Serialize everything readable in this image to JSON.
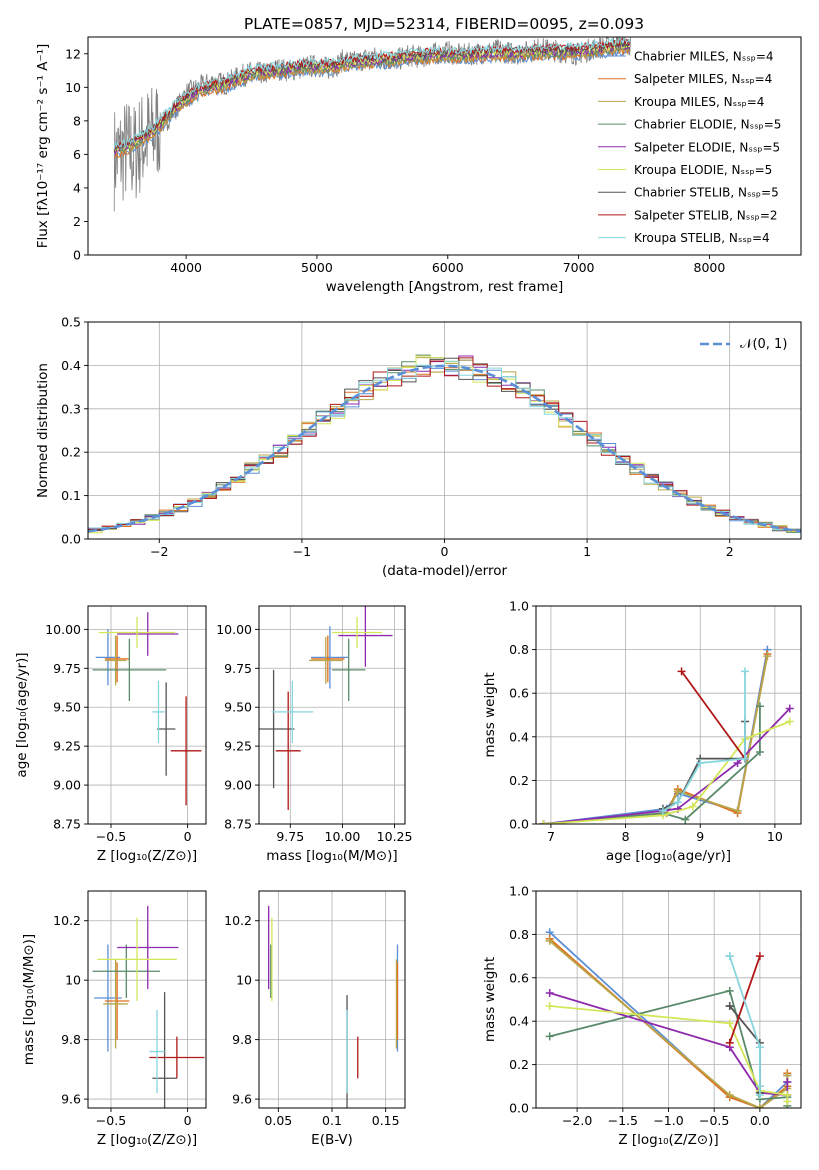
{
  "colors": {
    "Chabrier MILES": "#5b8fd6",
    "Salpeter MILES": "#e0701e",
    "Kroupa MILES": "#b8a64a",
    "Chabrier ELODIE": "#5a8a6a",
    "Salpeter ELODIE": "#8e2aad",
    "Kroupa ELODIE": "#d4e658",
    "Chabrier STELIB": "#555555",
    "Salpeter STELIB": "#b01717",
    "Kroupa STELIB": "#86d6de",
    "data": "#808080",
    "gauss": "#5b8fd6"
  },
  "chart_data": [
    {
      "id": "spectrum",
      "type": "line",
      "title": "PLATE=0857, MJD=52314, FIBERID=0095, z=0.093",
      "xlabel": "wavelength [Angstrom, rest frame]",
      "ylabel": "Flux [fλ10⁻¹⁷ erg cm⁻² s⁻¹ A⁻¹]",
      "xlim": [
        3250,
        8700
      ],
      "ylim": [
        0,
        13
      ],
      "xticks": [
        4000,
        5000,
        6000,
        7000,
        8000
      ],
      "yticks": [
        0,
        2,
        4,
        6,
        8,
        10,
        12
      ],
      "grid": false,
      "legend_position": "top-right",
      "legend": [
        {
          "label": "Chabrier MILES, Nₛₛₚ=4",
          "series": "Chabrier MILES"
        },
        {
          "label": "Salpeter MILES, Nₛₛₚ=4",
          "series": "Salpeter MILES"
        },
        {
          "label": "Kroupa MILES, Nₛₛₚ=4",
          "series": "Kroupa MILES"
        },
        {
          "label": "Chabrier ELODIE, Nₛₛₚ=5",
          "series": "Chabrier ELODIE"
        },
        {
          "label": "Salpeter ELODIE, Nₛₛₚ=5",
          "series": "Salpeter ELODIE"
        },
        {
          "label": "Kroupa ELODIE, Nₛₛₚ=5",
          "series": "Kroupa ELODIE"
        },
        {
          "label": "Chabrier STELIB, Nₛₛₚ=5",
          "series": "Chabrier STELIB"
        },
        {
          "label": "Salpeter STELIB, Nₛₛₚ=2",
          "series": "Salpeter STELIB"
        },
        {
          "label": "Kroupa STELIB, Nₛₛₚ=4",
          "series": "Kroupa STELIB"
        }
      ],
      "data_spectrum": {
        "x": [
          3450,
          3500,
          3550,
          3600,
          3650,
          3700,
          3750,
          3800,
          3850,
          3900,
          3950,
          4000,
          4100,
          4200,
          4300,
          4400,
          4500,
          4600,
          4700,
          4800,
          4900,
          5000,
          5100,
          5200,
          5300,
          5400,
          5500,
          5600,
          5700,
          5800,
          5900,
          6000,
          6100,
          6200,
          6300,
          6400,
          6500,
          6600,
          6700,
          6800,
          6900,
          7000,
          7100,
          7200,
          7300,
          7400
        ],
        "y": [
          5.8,
          6.0,
          6.3,
          6.0,
          6.6,
          7.0,
          7.2,
          7.8,
          8.0,
          8.6,
          9.0,
          9.6,
          10.0,
          10.3,
          10.2,
          10.6,
          10.9,
          10.8,
          11.1,
          11.0,
          11.2,
          11.3,
          11.1,
          11.6,
          11.5,
          11.8,
          11.7,
          11.6,
          11.9,
          11.8,
          12.0,
          12.1,
          11.9,
          12.0,
          12.1,
          12.2,
          12.0,
          12.1,
          12.3,
          12.2,
          12.1,
          12.0,
          12.3,
          12.4,
          12.6,
          12.5
        ]
      },
      "model_spectrum": {
        "x": [
          3450,
          3550,
          3650,
          3750,
          3850,
          3950,
          4100,
          4300,
          4500,
          4700,
          4900,
          5100,
          5300,
          5500,
          5700,
          5900,
          6100,
          6300,
          6500,
          6700,
          6900,
          7100,
          7300,
          7400
        ],
        "y": [
          6.2,
          6.4,
          6.9,
          7.4,
          8.2,
          9.0,
          9.8,
          10.2,
          10.8,
          11.0,
          11.2,
          11.2,
          11.5,
          11.6,
          11.8,
          11.9,
          11.9,
          12.0,
          12.0,
          12.1,
          12.1,
          12.2,
          12.4,
          12.5
        ]
      }
    },
    {
      "id": "residuals",
      "type": "line",
      "xlabel": "(data-model)/error",
      "ylabel": "Normed distribution",
      "xlim": [
        -2.5,
        2.5
      ],
      "ylim": [
        0,
        0.5
      ],
      "xticks": [
        -2,
        -1,
        0,
        1,
        2
      ],
      "yticks": [
        0.0,
        0.1,
        0.2,
        0.3,
        0.4,
        0.5
      ],
      "grid": true,
      "legend_position": "top-right",
      "legend": [
        {
          "label": "𝒩(0, 1)",
          "series": "gauss"
        }
      ],
      "gaussian": {
        "mean": 0,
        "sigma": 1,
        "style": "dashed"
      },
      "bin_width": 0.1,
      "series": [
        {
          "series": "Chabrier MILES"
        },
        {
          "series": "Salpeter MILES"
        },
        {
          "series": "Kroupa MILES"
        },
        {
          "series": "Chabrier ELODIE"
        },
        {
          "series": "Salpeter ELODIE"
        },
        {
          "series": "Kroupa ELODIE"
        },
        {
          "series": "Chabrier STELIB"
        },
        {
          "series": "Salpeter STELIB"
        },
        {
          "series": "Kroupa STELIB"
        }
      ]
    },
    {
      "id": "age-vs-Z",
      "type": "scatter",
      "xlabel": "Z [log₁₀(Z/Z⊙)]",
      "ylabel": "age  [log₁₀(age/yr)]",
      "xlim": [
        -0.65,
        0.12
      ],
      "ylim": [
        8.75,
        10.15
      ],
      "xticks": [
        -0.5,
        0.0
      ],
      "yticks": [
        8.75,
        9.0,
        9.25,
        9.5,
        9.75,
        10.0
      ],
      "ytick_labels": [
        "8.75",
        "9.00",
        "9.25",
        "9.50",
        "9.75",
        "10.00"
      ],
      "grid": true,
      "points": [
        {
          "series": "Chabrier MILES",
          "x": -0.52,
          "xerr": 0.08,
          "y": 9.82,
          "yerr": 0.18
        },
        {
          "series": "Salpeter MILES",
          "x": -0.46,
          "xerr": 0.08,
          "y": 9.81,
          "yerr": 0.15
        },
        {
          "series": "Kroupa MILES",
          "x": -0.47,
          "xerr": 0.07,
          "y": 9.8,
          "yerr": 0.16
        },
        {
          "series": "Chabrier ELODIE",
          "x": -0.38,
          "xerr": 0.24,
          "y": 9.74,
          "yerr": 0.2
        },
        {
          "series": "Salpeter ELODIE",
          "x": -0.26,
          "xerr": 0.2,
          "y": 9.97,
          "yerr": 0.14
        },
        {
          "series": "Kroupa ELODIE",
          "x": -0.33,
          "xerr": 0.25,
          "y": 9.98,
          "yerr": 0.1
        },
        {
          "series": "Chabrier STELIB",
          "x": -0.14,
          "xerr": 0.06,
          "y": 9.36,
          "yerr": 0.3
        },
        {
          "series": "Salpeter STELIB",
          "x": -0.01,
          "xerr": 0.1,
          "y": 9.22,
          "yerr": 0.35
        },
        {
          "series": "Kroupa STELIB",
          "x": -0.19,
          "xerr": 0.04,
          "y": 9.47,
          "yerr": 0.2
        }
      ]
    },
    {
      "id": "age-vs-mass",
      "type": "scatter",
      "xlabel": "mass [log₁₀(M/M⊙)]",
      "xlim": [
        9.6,
        10.3
      ],
      "ylim": [
        8.75,
        10.15
      ],
      "xticks": [
        9.75,
        10.0,
        10.25
      ],
      "xtick_labels": [
        "9.75",
        "10.00",
        "10.25"
      ],
      "yticks": [
        8.75,
        9.0,
        9.25,
        9.5,
        9.75,
        10.0
      ],
      "ytick_labels": [
        "8.75",
        "9.00",
        "9.25",
        "9.50",
        "9.75",
        "10.00"
      ],
      "grid": true,
      "points": [
        {
          "series": "Chabrier MILES",
          "x": 9.94,
          "xerr": 0.09,
          "y": 9.82,
          "yerr": 0.2
        },
        {
          "series": "Salpeter MILES",
          "x": 9.93,
          "xerr": 0.08,
          "y": 9.81,
          "yerr": 0.15
        },
        {
          "series": "Kroupa MILES",
          "x": 9.92,
          "xerr": 0.08,
          "y": 9.8,
          "yerr": 0.15
        },
        {
          "series": "Chabrier ELODIE",
          "x": 10.03,
          "xerr": 0.08,
          "y": 9.74,
          "yerr": 0.2
        },
        {
          "series": "Salpeter ELODIE",
          "x": 10.11,
          "xerr": 0.13,
          "y": 9.96,
          "yerr": 0.2
        },
        {
          "series": "Kroupa ELODIE",
          "x": 10.07,
          "xerr": 0.12,
          "y": 9.98,
          "yerr": 0.1
        },
        {
          "series": "Chabrier STELIB",
          "x": 9.67,
          "xerr": 0.1,
          "y": 9.36,
          "yerr": 0.38
        },
        {
          "series": "Salpeter STELIB",
          "x": 9.74,
          "xerr": 0.06,
          "y": 9.22,
          "yerr": 0.38
        },
        {
          "series": "Kroupa STELIB",
          "x": 9.76,
          "xerr": 0.1,
          "y": 9.47,
          "yerr": 0.2
        }
      ]
    },
    {
      "id": "weight-vs-age",
      "type": "line",
      "xlabel": "age  [log₁₀(age/yr)]",
      "ylabel": "mass weight",
      "xlim": [
        6.8,
        10.35
      ],
      "ylim": [
        0,
        1.0
      ],
      "xticks": [
        7,
        8,
        9,
        10
      ],
      "yticks": [
        0.0,
        0.2,
        0.4,
        0.6,
        0.8,
        1.0
      ],
      "grid": true,
      "series": [
        {
          "series": "Chabrier MILES",
          "x": [
            6.9,
            8.55,
            8.7,
            9.5,
            9.9
          ],
          "y": [
            0.0,
            0.07,
            0.14,
            0.06,
            0.8
          ]
        },
        {
          "series": "Salpeter MILES",
          "x": [
            6.9,
            8.55,
            8.7,
            9.5,
            9.9
          ],
          "y": [
            0.0,
            0.05,
            0.16,
            0.05,
            0.78
          ]
        },
        {
          "series": "Kroupa MILES",
          "x": [
            6.9,
            8.55,
            8.7,
            9.5,
            9.9
          ],
          "y": [
            0.0,
            0.05,
            0.15,
            0.06,
            0.77
          ]
        },
        {
          "series": "Chabrier ELODIE",
          "x": [
            6.9,
            8.5,
            8.8,
            9.8,
            9.8
          ],
          "y": [
            0.0,
            0.05,
            0.02,
            0.33,
            0.54
          ]
        },
        {
          "series": "Salpeter ELODIE",
          "x": [
            6.9,
            8.5,
            8.7,
            9.5,
            10.2
          ],
          "y": [
            0.0,
            0.06,
            0.07,
            0.28,
            0.53
          ]
        },
        {
          "series": "Kroupa ELODIE",
          "x": [
            6.9,
            8.5,
            8.9,
            9.6,
            10.2
          ],
          "y": [
            0.0,
            0.04,
            0.08,
            0.39,
            0.47
          ]
        },
        {
          "series": "Chabrier STELIB",
          "x": [
            8.5,
            8.7,
            9.0,
            9.6,
            9.6
          ],
          "y": [
            0.07,
            0.1,
            0.3,
            0.3,
            0.47
          ]
        },
        {
          "series": "Salpeter STELIB",
          "x": [
            8.75,
            9.6
          ],
          "y": [
            0.7,
            0.3
          ]
        },
        {
          "series": "Kroupa STELIB",
          "x": [
            8.5,
            8.7,
            9.0,
            9.6,
            9.6
          ],
          "y": [
            0.06,
            0.1,
            0.28,
            0.3,
            0.7
          ]
        }
      ]
    },
    {
      "id": "mass-vs-Z",
      "type": "scatter",
      "xlabel": "Z [log₁₀(Z/Z⊙)]",
      "ylabel": "mass [log₁₀(M/M⊙)]",
      "xlim": [
        -0.65,
        0.12
      ],
      "ylim": [
        9.57,
        10.3
      ],
      "xticks": [
        -0.5,
        0.0
      ],
      "yticks": [
        9.6,
        9.8,
        10.0,
        10.2
      ],
      "grid": true,
      "points": [
        {
          "series": "Chabrier MILES",
          "x": -0.52,
          "xerr": 0.09,
          "y": 9.94,
          "yerr": 0.18
        },
        {
          "series": "Salpeter MILES",
          "x": -0.46,
          "xerr": 0.08,
          "y": 9.93,
          "yerr": 0.13
        },
        {
          "series": "Kroupa MILES",
          "x": -0.47,
          "xerr": 0.08,
          "y": 9.92,
          "yerr": 0.15
        },
        {
          "series": "Chabrier ELODIE",
          "x": -0.4,
          "xerr": 0.22,
          "y": 10.03,
          "yerr": 0.09
        },
        {
          "series": "Salpeter ELODIE",
          "x": -0.26,
          "xerr": 0.2,
          "y": 10.11,
          "yerr": 0.14
        },
        {
          "series": "Kroupa ELODIE",
          "x": -0.33,
          "xerr": 0.26,
          "y": 10.07,
          "yerr": 0.14
        },
        {
          "series": "Chabrier STELIB",
          "x": -0.15,
          "xerr": 0.08,
          "y": 9.67,
          "yerr": 0.29
        },
        {
          "series": "Salpeter STELIB",
          "x": -0.07,
          "xerr": 0.18,
          "y": 9.74,
          "yerr": 0.07
        },
        {
          "series": "Kroupa STELIB",
          "x": -0.2,
          "xerr": 0.05,
          "y": 9.76,
          "yerr": 0.14
        }
      ]
    },
    {
      "id": "mass-vs-EBV",
      "type": "scatter",
      "xlabel": "E(B-V)",
      "xlim": [
        0.032,
        0.168
      ],
      "ylim": [
        9.57,
        10.3
      ],
      "xticks": [
        0.05,
        0.1,
        0.15
      ],
      "yticks": [
        9.6,
        9.8,
        10.0,
        10.2
      ],
      "grid": true,
      "points": [
        {
          "series": "Chabrier MILES",
          "x": 0.161,
          "y": 9.94,
          "yerr": 0.18
        },
        {
          "series": "Salpeter MILES",
          "x": 0.161,
          "y": 9.93,
          "yerr": 0.13
        },
        {
          "series": "Kroupa MILES",
          "x": 0.16,
          "y": 9.92,
          "yerr": 0.15
        },
        {
          "series": "Chabrier ELODIE",
          "x": 0.043,
          "y": 10.03,
          "yerr": 0.09
        },
        {
          "series": "Salpeter ELODIE",
          "x": 0.041,
          "y": 10.11,
          "yerr": 0.14
        },
        {
          "series": "Kroupa ELODIE",
          "x": 0.044,
          "y": 10.07,
          "yerr": 0.14
        },
        {
          "series": "Chabrier STELIB",
          "x": 0.114,
          "y": 9.67,
          "yerr": 0.28
        },
        {
          "series": "Salpeter STELIB",
          "x": 0.124,
          "y": 9.74,
          "yerr": 0.07
        },
        {
          "series": "Kroupa STELIB",
          "x": 0.114,
          "y": 9.76,
          "yerr": 0.14
        }
      ]
    },
    {
      "id": "weight-vs-Z",
      "type": "line",
      "xlabel": "Z [log₁₀(Z/Z⊙)]",
      "ylabel": "mass weight",
      "xlim": [
        -2.45,
        0.45
      ],
      "ylim": [
        0,
        1.0
      ],
      "xticks": [
        -2.0,
        -1.5,
        -1.0,
        -0.5,
        0.0
      ],
      "xtick_labels": [
        "−2.0",
        "−1.5",
        "−1.0",
        "−0.5",
        "0.0"
      ],
      "yticks": [
        0.0,
        0.2,
        0.4,
        0.6,
        0.8,
        1.0
      ],
      "grid": true,
      "series": [
        {
          "series": "Chabrier MILES",
          "x": [
            -2.3,
            -0.33,
            0.0,
            0.3,
            0.3
          ],
          "y": [
            0.81,
            0.05,
            0.0,
            0.12,
            0.15
          ]
        },
        {
          "series": "Salpeter MILES",
          "x": [
            -2.3,
            -0.33,
            0.0,
            0.3,
            0.3
          ],
          "y": [
            0.78,
            0.05,
            0.0,
            0.1,
            0.16
          ]
        },
        {
          "series": "Kroupa MILES",
          "x": [
            -2.3,
            -0.33,
            0.0,
            0.3,
            0.3
          ],
          "y": [
            0.77,
            0.06,
            0.0,
            0.09,
            0.15
          ]
        },
        {
          "series": "Chabrier ELODIE",
          "x": [
            -2.3,
            -0.33,
            0.0,
            0.3,
            0.3
          ],
          "y": [
            0.33,
            0.54,
            0.04,
            0.05,
            0.01
          ]
        },
        {
          "series": "Salpeter ELODIE",
          "x": [
            -2.3,
            -0.33,
            0.0,
            0.3,
            0.3
          ],
          "y": [
            0.53,
            0.28,
            0.07,
            0.06,
            0.12
          ]
        },
        {
          "series": "Kroupa ELODIE",
          "x": [
            -2.3,
            -0.33,
            0.0,
            0.3,
            0.3
          ],
          "y": [
            0.47,
            0.39,
            0.08,
            0.06,
            0.03
          ]
        },
        {
          "series": "Chabrier STELIB",
          "x": [
            -0.33,
            -0.33,
            0.0,
            0.0,
            0.0
          ],
          "y": [
            0.47,
            0.47,
            0.3,
            0.07,
            0.1
          ]
        },
        {
          "series": "Salpeter STELIB",
          "x": [
            -0.33,
            0.0
          ],
          "y": [
            0.3,
            0.7
          ]
        },
        {
          "series": "Kroupa STELIB",
          "x": [
            -0.33,
            -0.33,
            0.0,
            0.0,
            0.0
          ],
          "y": [
            0.7,
            0.7,
            0.28,
            0.06,
            0.1
          ]
        }
      ]
    }
  ]
}
